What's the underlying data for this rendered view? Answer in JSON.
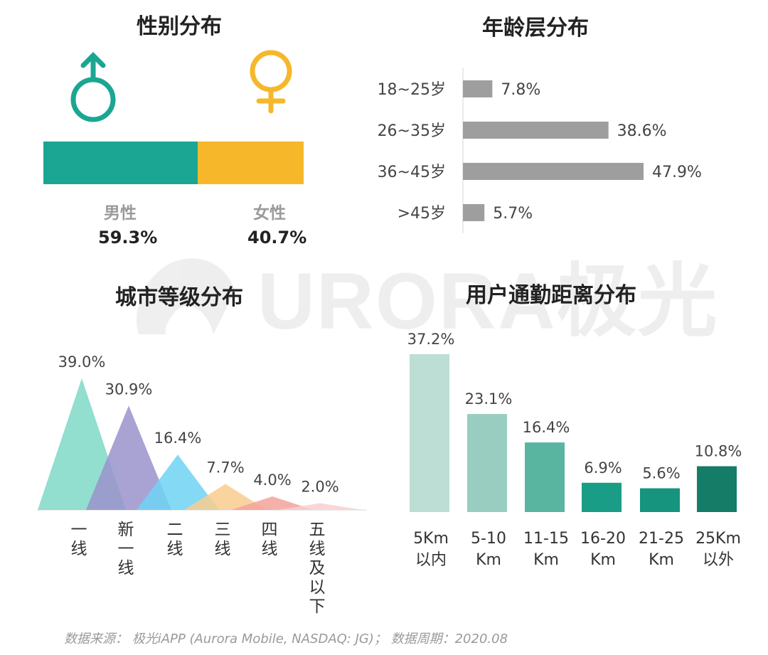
{
  "gender": {
    "title": "性别分布",
    "male_label": "男性",
    "male_value": "59.3%",
    "female_label": "女性",
    "female_value": "40.7%"
  },
  "watermark": "URORA极光",
  "source": "数据来源： 极光iAPP (Aurora Mobile, NASDAQ: JG)； 数据周期：2020.08",
  "colors": {
    "male": "#1aa692",
    "female": "#f6b72a",
    "age_bar": "#9e9e9e"
  },
  "chart_data": [
    {
      "id": "gender",
      "type": "bar",
      "title": "性别分布",
      "categories": [
        "男性",
        "女性"
      ],
      "values": [
        59.3,
        40.7
      ]
    },
    {
      "id": "age",
      "type": "bar",
      "orientation": "horizontal",
      "title": "年龄层分布",
      "categories": [
        "18~25岁",
        "26~35岁",
        "36~45岁",
        ">45岁"
      ],
      "values": [
        7.8,
        38.6,
        47.9,
        5.7
      ],
      "value_labels": [
        "7.8%",
        "38.6%",
        "47.9%",
        "5.7%"
      ],
      "color": "#9e9e9e"
    },
    {
      "id": "city",
      "type": "area",
      "style": "overlapping-triangles",
      "title": "城市等级分布",
      "categories": [
        "一线",
        "新一线",
        "二线",
        "三线",
        "四线",
        "五线及以下"
      ],
      "values": [
        39.0,
        30.9,
        16.4,
        7.7,
        4.0,
        2.0
      ],
      "value_labels": [
        "39.0%",
        "30.9%",
        "16.4%",
        "7.7%",
        "4.0%",
        "2.0%"
      ],
      "colors": [
        "#7fd8c7",
        "#9a93cd",
        "#6fd3f3",
        "#f9cc8e",
        "#f5a29b",
        "#f9cfd0"
      ]
    },
    {
      "id": "commute",
      "type": "bar",
      "title": "用户通勤距离分布",
      "categories": [
        "5Km 以内",
        "5-10 Km",
        "11-15 Km",
        "16-20 Km",
        "21-25 Km",
        "25Km 以外"
      ],
      "values": [
        37.2,
        23.1,
        16.4,
        6.9,
        5.6,
        10.8
      ],
      "value_labels": [
        "37.2%",
        "23.1%",
        "16.4%",
        "6.9%",
        "5.6%",
        "10.8%"
      ],
      "colors": [
        "#bcded4",
        "#99cdbf",
        "#5ab5a0",
        "#1a9d86",
        "#17947d",
        "#147c67"
      ]
    }
  ]
}
